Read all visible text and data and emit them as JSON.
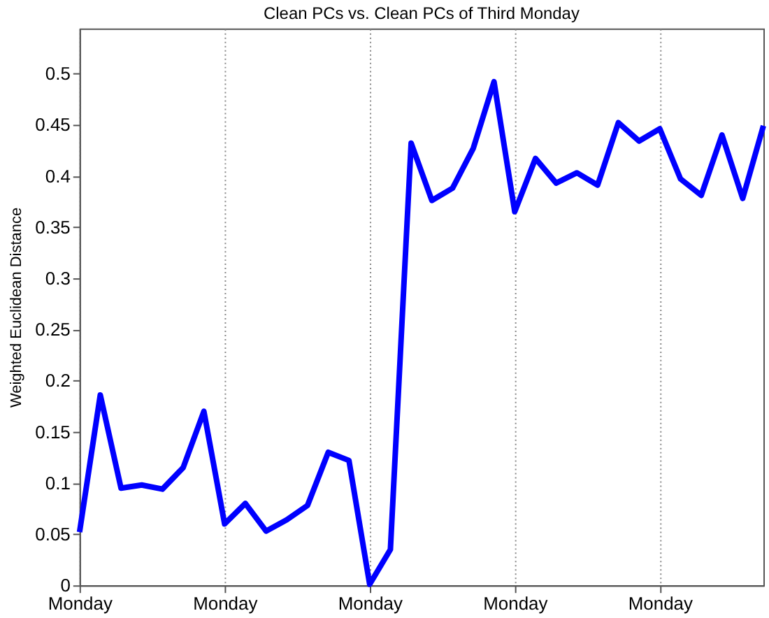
{
  "chart_data": {
    "type": "line",
    "title": "Clean PCs vs. Clean PCs of Third Monday",
    "ylabel": "Weighted Euclidean Distance",
    "categories": [
      "Monday",
      null,
      null,
      null,
      null,
      null,
      null,
      "Monday",
      null,
      null,
      null,
      null,
      null,
      null,
      "Monday",
      null,
      null,
      null,
      null,
      null,
      null,
      "Monday",
      null,
      null,
      null,
      null,
      null,
      null,
      "Monday",
      null,
      null,
      null,
      null,
      null
    ],
    "series": [
      {
        "color": "#0000ff",
        "values": [
          0.052,
          0.186,
          0.095,
          0.098,
          0.094,
          0.115,
          0.17,
          0.06,
          0.08,
          0.053,
          0.064,
          0.078,
          0.13,
          0.122,
          0.001,
          0.035,
          0.432,
          0.376,
          0.388,
          0.427,
          0.492,
          0.365,
          0.417,
          0.393,
          0.403,
          0.391,
          0.452,
          0.434,
          0.446,
          0.397,
          0.381,
          0.44,
          0.378,
          0.449
        ]
      }
    ],
    "ylim": [
      0,
      0.544
    ],
    "yticks": [
      0,
      0.05,
      0.1,
      0.15,
      0.2,
      0.25,
      0.3,
      0.35,
      0.4,
      0.45,
      0.5
    ],
    "grid": "x",
    "marker": "none",
    "line_style": "solid",
    "legend": false
  }
}
